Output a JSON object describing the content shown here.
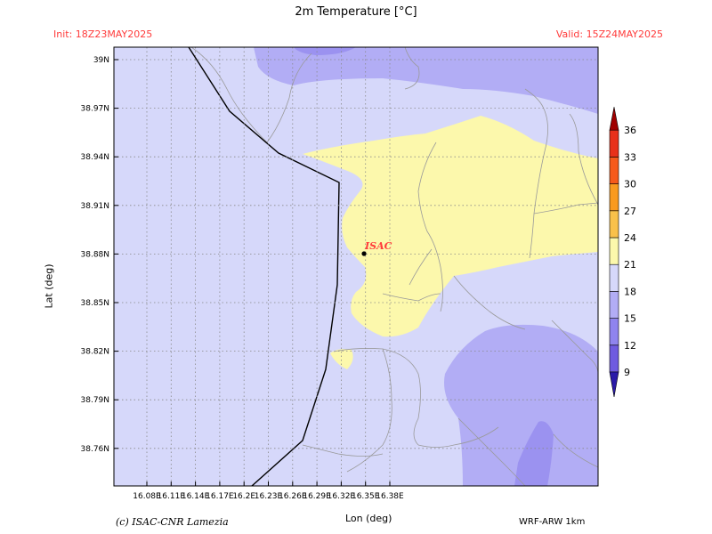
{
  "header": {
    "title": "2m Temperature [°C]",
    "init": "Init: 18Z23MAY2025",
    "valid": "Valid: 15Z24MAY2025"
  },
  "footer": {
    "credit": "(c) ISAC-CNR Lamezia",
    "model": "WRF-ARW 1km"
  },
  "axes": {
    "xlabel": "Lon (deg)",
    "ylabel": "Lat (deg)",
    "lon_ticks": [
      "16.08E",
      "16.11E",
      "16.14E",
      "16.17E",
      "16.2E",
      "16.23E",
      "16.26E",
      "16.29E",
      "16.32E",
      "16.35E",
      "16.38E"
    ],
    "lat_ticks": [
      "39N",
      "38.97N",
      "38.94N",
      "38.91N",
      "38.88N",
      "38.85N",
      "38.82N",
      "38.79N",
      "38.76N"
    ]
  },
  "station": {
    "label": "ISAC"
  },
  "colorbar": {
    "levels": [
      "9",
      "12",
      "15",
      "18",
      "21",
      "24",
      "27",
      "30",
      "33",
      "36"
    ],
    "colors": [
      "#6f5be0",
      "#8f84ee",
      "#b2adf5",
      "#d6d8fa",
      "#fcf8ac",
      "#f9c14a",
      "#f99a1f",
      "#f65a1b",
      "#e8311a",
      "#c41212"
    ],
    "below_color": "#2a1aa8",
    "above_color": "#a00000"
  },
  "palette": {
    "sea_light": "#d6d8fa",
    "band_15": "#b2adf5",
    "band_12": "#9b92f0",
    "band_21": "#fcf8ac",
    "coast": "#000000",
    "label_red": "#ff3b3b"
  }
}
